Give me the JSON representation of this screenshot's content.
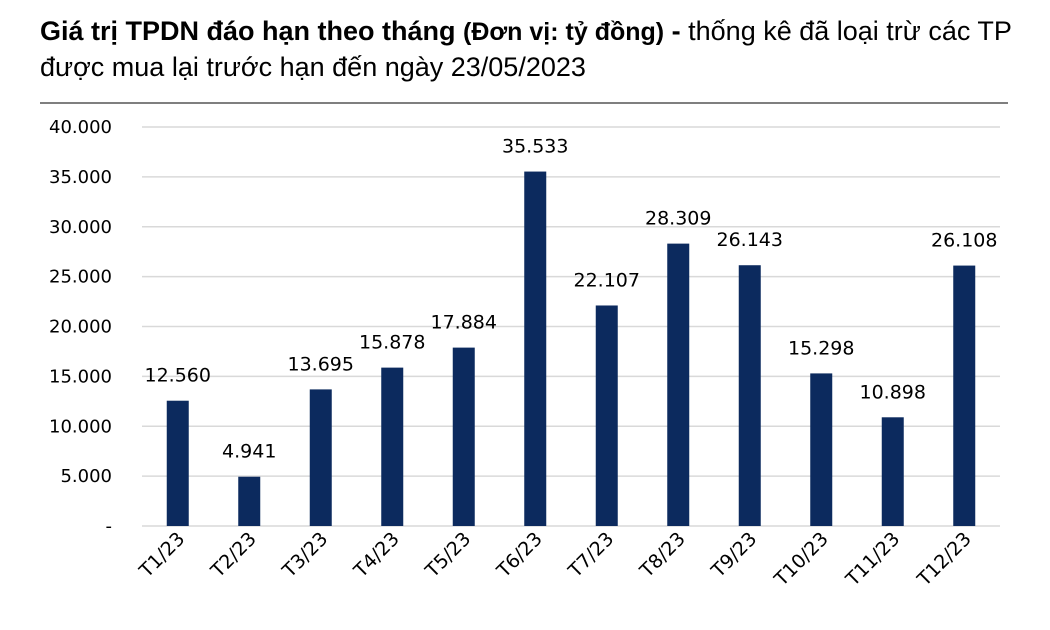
{
  "title": {
    "part1": "Giá trị TPDN đáo hạn theo tháng",
    "part2": "(Đơn vị: tỷ đồng)",
    "part3": "-",
    "part4": "thống kê đã loại trừ các TP được mua lại trước hạn đến ngày 23/05/2023"
  },
  "colors": {
    "bar": "#0c2a5e",
    "grid": "#d9d9d9",
    "axis_text": "#000000",
    "divider": "#7f7f7f"
  },
  "chart_data": {
    "type": "bar",
    "categories": [
      "T1/23",
      "T2/23",
      "T3/23",
      "T4/23",
      "T5/23",
      "T6/23",
      "T7/23",
      "T8/23",
      "T9/23",
      "T10/23",
      "T11/23",
      "T12/23"
    ],
    "values": [
      12560,
      4941,
      13695,
      15878,
      17884,
      35533,
      22107,
      28309,
      26143,
      15298,
      10898,
      26108
    ],
    "data_labels": [
      "12.560",
      "4.941",
      "13.695",
      "15.878",
      "17.884",
      "35.533",
      "22.107",
      "28.309",
      "26.143",
      "15.298",
      "10.898",
      "26.108"
    ],
    "yticks": [
      0,
      5000,
      10000,
      15000,
      20000,
      25000,
      30000,
      35000,
      40000
    ],
    "ytick_labels": [
      "-",
      "5.000",
      "10.000",
      "15.000",
      "20.000",
      "25.000",
      "30.000",
      "35.000",
      "40.000"
    ],
    "ylim": [
      0,
      40000
    ],
    "grid": true,
    "legend": false
  }
}
